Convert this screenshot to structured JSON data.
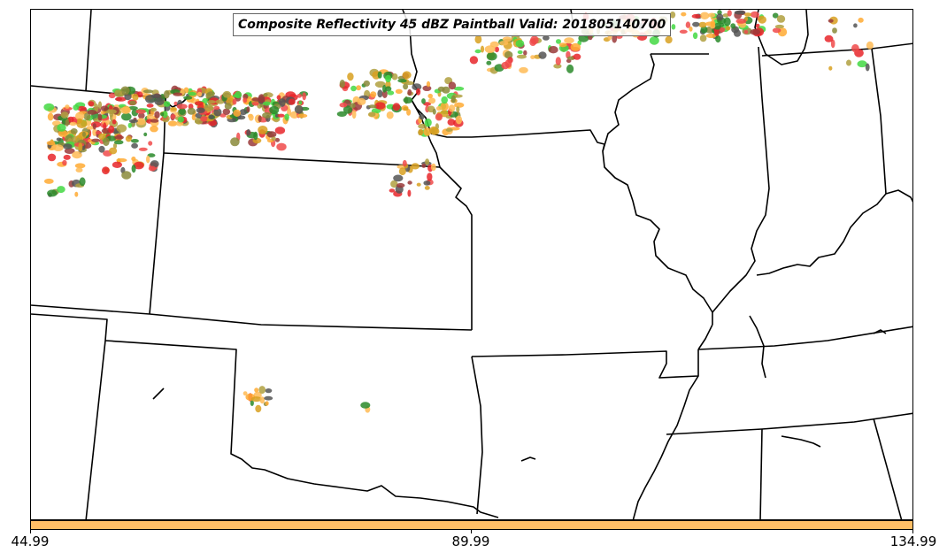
{
  "title": "Composite Reflectivity 45 dBZ Paintball Valid: 201805140700",
  "colorbar": {
    "color": "#ffbf66",
    "tick_labels": [
      "44.99",
      "89.99",
      "134.99"
    ]
  },
  "member_colors": [
    "#e8262a",
    "#f04a4a",
    "#ffaa33",
    "#ffbb55",
    "#b0a040",
    "#8a8a3a",
    "#43d843",
    "#2a8a2a",
    "#555555",
    "#9a3a3a",
    "#d8a020"
  ],
  "border_color": "#000000"
}
